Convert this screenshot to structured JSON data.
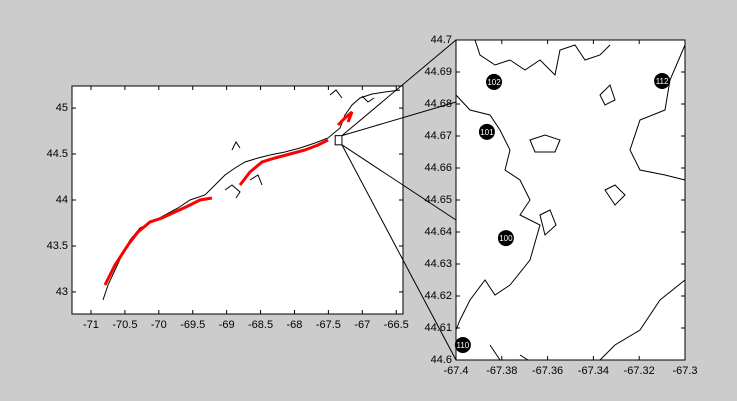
{
  "chart_data": [
    {
      "type": "map",
      "xlim": [
        -71.28,
        -66.4
      ],
      "ylim": [
        42.76,
        45.24
      ],
      "xticks": [
        -71,
        -70.5,
        -70,
        -69.5,
        -69,
        -68.5,
        -68,
        -67.5,
        -67,
        -66.5
      ],
      "yticks": [
        43,
        43.5,
        44,
        44.5,
        45
      ]
    },
    {
      "type": "labeled-points",
      "xlim": [
        -67.4,
        -67.3
      ],
      "ylim": [
        44.6,
        44.7
      ],
      "xticks": [
        -67.4,
        -67.38,
        -67.36,
        -67.34,
        -67.32,
        -67.3
      ],
      "yticks": [
        44.6,
        44.61,
        44.62,
        44.63,
        44.64,
        44.65,
        44.66,
        44.67,
        44.68,
        44.69,
        44.7
      ],
      "labels": [
        "102",
        "112",
        "101",
        "100",
        "110"
      ],
      "x": [
        -67.3834,
        -67.31,
        -67.3865,
        -67.3782,
        -67.397
      ],
      "y": [
        44.6869,
        44.6872,
        44.6713,
        44.6381,
        44.6047
      ]
    }
  ]
}
